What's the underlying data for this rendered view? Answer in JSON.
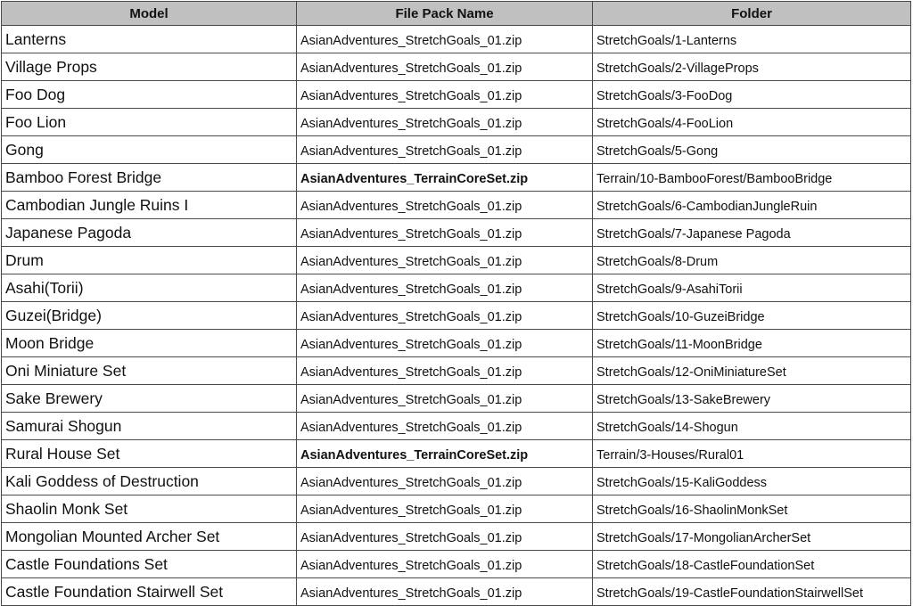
{
  "headers": {
    "model": "Model",
    "file": "File Pack Name",
    "folder": "Folder"
  },
  "rows": [
    {
      "model": "Lanterns",
      "file": "AsianAdventures_StretchGoals_01.zip",
      "folder": "StretchGoals/1-Lanterns",
      "bold": false
    },
    {
      "model": "Village Props",
      "file": "AsianAdventures_StretchGoals_01.zip",
      "folder": "StretchGoals/2-VillageProps",
      "bold": false
    },
    {
      "model": "Foo Dog",
      "file": "AsianAdventures_StretchGoals_01.zip",
      "folder": "StretchGoals/3-FooDog",
      "bold": false
    },
    {
      "model": "Foo Lion",
      "file": "AsianAdventures_StretchGoals_01.zip",
      "folder": "StretchGoals/4-FooLion",
      "bold": false
    },
    {
      "model": "Gong",
      "file": "AsianAdventures_StretchGoals_01.zip",
      "folder": "StretchGoals/5-Gong",
      "bold": false
    },
    {
      "model": "Bamboo Forest Bridge",
      "file": "AsianAdventures_TerrainCoreSet.zip",
      "folder": "Terrain/10-BambooForest/BambooBridge",
      "bold": true
    },
    {
      "model": "Cambodian Jungle Ruins I",
      "file": "AsianAdventures_StretchGoals_01.zip",
      "folder": "StretchGoals/6-CambodianJungleRuin",
      "bold": false
    },
    {
      "model": "Japanese Pagoda",
      "file": "AsianAdventures_StretchGoals_01.zip",
      "folder": "StretchGoals/7-Japanese Pagoda",
      "bold": false
    },
    {
      "model": "Drum",
      "file": "AsianAdventures_StretchGoals_01.zip",
      "folder": "StretchGoals/8-Drum",
      "bold": false
    },
    {
      "model": "Asahi(Torii)",
      "file": "AsianAdventures_StretchGoals_01.zip",
      "folder": "StretchGoals/9-AsahiTorii",
      "bold": false
    },
    {
      "model": "Guzei(Bridge)",
      "file": "AsianAdventures_StretchGoals_01.zip",
      "folder": "StretchGoals/10-GuzeiBridge",
      "bold": false
    },
    {
      "model": "Moon Bridge",
      "file": "AsianAdventures_StretchGoals_01.zip",
      "folder": "StretchGoals/11-MoonBridge",
      "bold": false
    },
    {
      "model": "Oni Miniature Set",
      "file": "AsianAdventures_StretchGoals_01.zip",
      "folder": "StretchGoals/12-OniMiniatureSet",
      "bold": false
    },
    {
      "model": "Sake Brewery",
      "file": "AsianAdventures_StretchGoals_01.zip",
      "folder": "StretchGoals/13-SakeBrewery",
      "bold": false
    },
    {
      "model": "Samurai Shogun",
      "file": "AsianAdventures_StretchGoals_01.zip",
      "folder": "StretchGoals/14-Shogun",
      "bold": false
    },
    {
      "model": "Rural House Set",
      "file": "AsianAdventures_TerrainCoreSet.zip",
      "folder": "Terrain/3-Houses/Rural01",
      "bold": true
    },
    {
      "model": "Kali Goddess of Destruction",
      "file": "AsianAdventures_StretchGoals_01.zip",
      "folder": "StretchGoals/15-KaliGoddess",
      "bold": false
    },
    {
      "model": "Shaolin Monk Set",
      "file": "AsianAdventures_StretchGoals_01.zip",
      "folder": "StretchGoals/16-ShaolinMonkSet",
      "bold": false
    },
    {
      "model": "Mongolian Mounted Archer Set",
      "file": "AsianAdventures_StretchGoals_01.zip",
      "folder": "StretchGoals/17-MongolianArcherSet",
      "bold": false
    },
    {
      "model": "Castle Foundations Set",
      "file": "AsianAdventures_StretchGoals_01.zip",
      "folder": "StretchGoals/18-CastleFoundationSet",
      "bold": false
    },
    {
      "model": "Castle Foundation Stairwell Set",
      "file": "AsianAdventures_StretchGoals_01.zip",
      "folder": "StretchGoals/19-CastleFoundationStairwellSet",
      "bold": false
    }
  ]
}
